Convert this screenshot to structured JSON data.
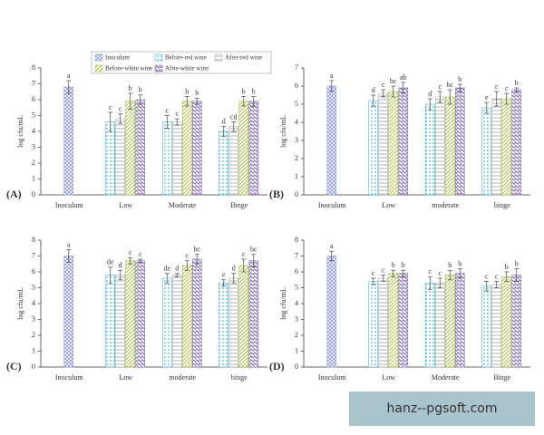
{
  "watermark": "hanz--pgsoft.com",
  "chart_data": [
    {
      "type": "bar",
      "panel_label": "(A)",
      "y_label": "log cfu/mL",
      "legend": true,
      "categories": [
        "Inoculum",
        "Low",
        "Moderate",
        "Binge"
      ],
      "ylim": [
        0,
        8
      ],
      "yticks": [
        0,
        1,
        2,
        3,
        4,
        5,
        6,
        7,
        8
      ],
      "series": [
        {
          "name": "Inoculum",
          "color": "#8f9ad6",
          "values": [
            6.8,
            null,
            null,
            null
          ],
          "errors": [
            0.4,
            null,
            null,
            null
          ],
          "labels": [
            "a",
            null,
            null,
            null
          ]
        },
        {
          "name": "Before-red wine",
          "color": "#3fb6d8",
          "values": [
            null,
            4.6,
            4.6,
            4.0
          ],
          "errors": [
            null,
            0.6,
            0.4,
            0.3
          ],
          "labels": [
            null,
            "c",
            "c",
            "d"
          ]
        },
        {
          "name": "After-red wine",
          "color": "#aaaaaa",
          "values": [
            null,
            4.8,
            4.6,
            4.3
          ],
          "errors": [
            null,
            0.3,
            0.2,
            0.3
          ],
          "labels": [
            null,
            "c",
            "c",
            "cd"
          ]
        },
        {
          "name": "Before-white wine",
          "color": "#a8bb3a",
          "values": [
            null,
            5.9,
            5.9,
            5.9
          ],
          "errors": [
            null,
            0.5,
            0.3,
            0.3
          ],
          "labels": [
            null,
            "b",
            "b",
            "b"
          ]
        },
        {
          "name": "Afrte-white wine",
          "color": "#8a6fb5",
          "values": [
            null,
            6.0,
            5.9,
            5.9
          ],
          "errors": [
            null,
            0.3,
            0.2,
            0.3
          ],
          "labels": [
            null,
            "b",
            "b",
            "b"
          ]
        }
      ]
    },
    {
      "type": "bar",
      "panel_label": "(B)",
      "y_label": "log cfu/mL",
      "categories": [
        "Inoculum",
        "Low",
        "moderate",
        "binge"
      ],
      "ylim": [
        0,
        7
      ],
      "yticks": [
        0,
        1,
        2,
        3,
        4,
        5,
        6,
        7
      ],
      "series": [
        {
          "color": "#8f9ad6",
          "values": [
            6.0,
            null,
            null,
            null
          ],
          "errors": [
            0.3,
            null,
            null,
            null
          ],
          "labels": [
            "a",
            null,
            null,
            null
          ]
        },
        {
          "color": "#3fb6d8",
          "values": [
            null,
            5.2,
            5.0,
            4.8
          ],
          "errors": [
            null,
            0.3,
            0.3,
            0.3
          ],
          "labels": [
            null,
            "d",
            "d",
            "e"
          ]
        },
        {
          "color": "#aaaaaa",
          "values": [
            null,
            5.6,
            5.4,
            5.3
          ],
          "errors": [
            null,
            0.2,
            0.3,
            0.4
          ],
          "labels": [
            null,
            "c",
            "c",
            "c"
          ]
        },
        {
          "color": "#a8bb3a",
          "values": [
            null,
            5.7,
            5.4,
            5.3
          ],
          "errors": [
            null,
            0.3,
            0.4,
            0.3
          ],
          "labels": [
            null,
            "bc",
            "bc",
            "c"
          ]
        },
        {
          "color": "#8a6fb5",
          "values": [
            null,
            5.9,
            5.9,
            5.8
          ],
          "errors": [
            null,
            0.3,
            0.2,
            0.1
          ],
          "labels": [
            null,
            "ab",
            "b",
            "b"
          ]
        }
      ]
    },
    {
      "type": "bar",
      "panel_label": "(C)",
      "y_label": "log cfu/mL",
      "categories": [
        "Inoculum",
        "Low",
        "moderate",
        "binge"
      ],
      "ylim": [
        0,
        8
      ],
      "yticks": [
        0,
        1,
        2,
        3,
        4,
        5,
        6,
        7,
        8
      ],
      "series": [
        {
          "color": "#8f9ad6",
          "values": [
            7.0,
            null,
            null,
            null
          ],
          "errors": [
            0.4,
            null,
            null,
            null
          ],
          "labels": [
            "a",
            null,
            null,
            null
          ]
        },
        {
          "color": "#3fb6d8",
          "values": [
            null,
            5.8,
            5.6,
            5.3
          ],
          "errors": [
            null,
            0.5,
            0.3,
            0.2
          ],
          "labels": [
            null,
            "de",
            "de",
            "e"
          ]
        },
        {
          "color": "#aaaaaa",
          "values": [
            null,
            5.8,
            5.8,
            5.6
          ],
          "errors": [
            null,
            0.3,
            0.1,
            0.3
          ],
          "labels": [
            null,
            "d",
            "d",
            "d"
          ]
        },
        {
          "color": "#a8bb3a",
          "values": [
            null,
            6.7,
            6.4,
            6.4
          ],
          "errors": [
            null,
            0.2,
            0.3,
            0.4
          ],
          "labels": [
            null,
            "c",
            "c",
            "c"
          ]
        },
        {
          "color": "#8a6fb5",
          "values": [
            null,
            6.7,
            6.8,
            6.7
          ],
          "errors": [
            null,
            0.1,
            0.3,
            0.4
          ],
          "labels": [
            null,
            "c",
            "bc",
            "bc"
          ]
        }
      ]
    },
    {
      "type": "bar",
      "panel_label": "(D)",
      "y_label": "log cfu/mL",
      "categories": [
        "Inoculum",
        "Low",
        "Moderate",
        "Binge"
      ],
      "ylim": [
        0,
        8
      ],
      "yticks": [
        0,
        1,
        2,
        3,
        4,
        5,
        6,
        7,
        8
      ],
      "series": [
        {
          "color": "#8f9ad6",
          "values": [
            7.0,
            null,
            null,
            null
          ],
          "errors": [
            0.3,
            null,
            null,
            null
          ],
          "labels": [
            "a",
            null,
            null,
            null
          ]
        },
        {
          "color": "#3fb6d8",
          "values": [
            null,
            5.4,
            5.3,
            5.1
          ],
          "errors": [
            null,
            0.2,
            0.4,
            0.3
          ],
          "labels": [
            null,
            "c",
            "c",
            "c"
          ]
        },
        {
          "color": "#aaaaaa",
          "values": [
            null,
            5.6,
            5.3,
            5.2
          ],
          "errors": [
            null,
            0.2,
            0.3,
            0.2
          ],
          "labels": [
            null,
            "c",
            "c",
            "c"
          ]
        },
        {
          "color": "#a8bb3a",
          "values": [
            null,
            5.9,
            5.8,
            5.7
          ],
          "errors": [
            null,
            0.2,
            0.3,
            0.3
          ],
          "labels": [
            null,
            "b",
            "b",
            "b"
          ]
        },
        {
          "color": "#8a6fb5",
          "values": [
            null,
            5.9,
            5.9,
            5.8
          ],
          "errors": [
            null,
            0.2,
            0.3,
            0.4
          ],
          "labels": [
            null,
            "b",
            "b",
            "b"
          ]
        }
      ]
    }
  ]
}
